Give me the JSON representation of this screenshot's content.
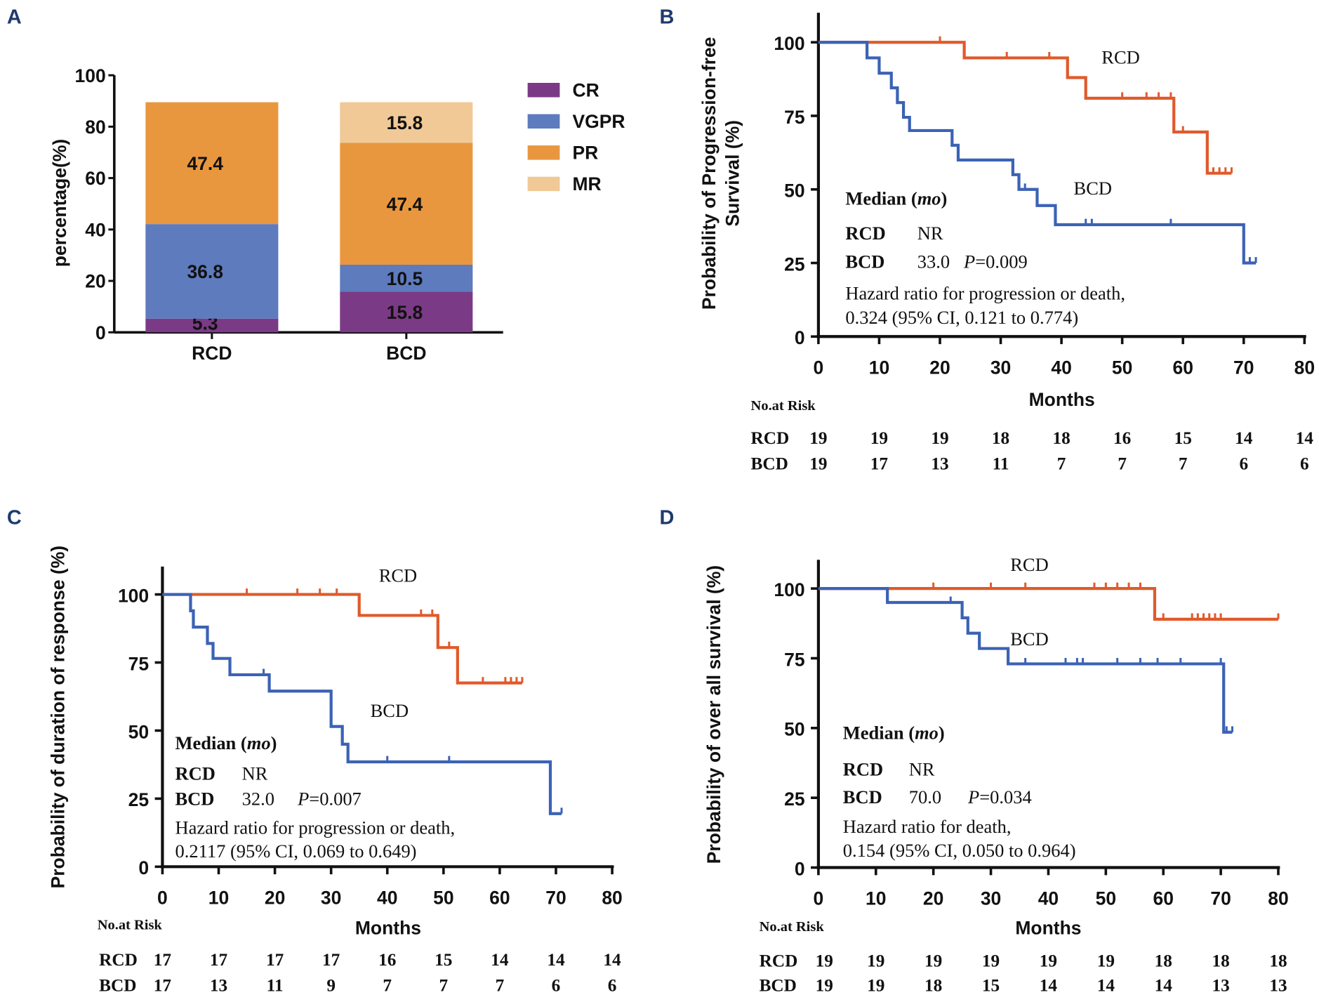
{
  "chart_data": [
    {
      "panel": "A",
      "type": "bar",
      "stacked": true,
      "categories": [
        "RCD",
        "BCD"
      ],
      "ylabel": "percentage(%)",
      "xlabel": "",
      "ylim": [
        0,
        100
      ],
      "yticks": [
        "0",
        "20",
        "40",
        "60",
        "80",
        "100"
      ],
      "legend_position": "right",
      "series": [
        {
          "name": "CR",
          "color": "#7b3a86",
          "values": [
            5.3,
            15.8
          ],
          "labels": [
            "5.3",
            "15.8"
          ]
        },
        {
          "name": "VGPR",
          "color": "#5e7bbd",
          "values": [
            36.8,
            10.5
          ],
          "labels": [
            "36.8",
            "10.5"
          ]
        },
        {
          "name": "PR",
          "color": "#e9973f",
          "values": [
            47.4,
            47.4
          ],
          "labels": [
            "47.4",
            "47.4"
          ]
        },
        {
          "name": "MR",
          "color": "#f0c996",
          "values": [
            0,
            15.8
          ],
          "labels": [
            "",
            "15.8"
          ]
        }
      ]
    },
    {
      "panel": "B",
      "type": "line",
      "subtype": "kaplan-meier",
      "ylabel": [
        "Probability of Progression-free",
        "Survival (%)"
      ],
      "xlabel": "Months",
      "xlim": [
        0,
        80
      ],
      "ylim": [
        0,
        100
      ],
      "xticks": [
        "0",
        "10",
        "20",
        "30",
        "40",
        "50",
        "60",
        "70",
        "80"
      ],
      "yticks": [
        "0",
        "25",
        "50",
        "75",
        "100"
      ],
      "series": [
        {
          "name": "RCD",
          "color": "#e05a2b",
          "end": 68,
          "steps": [
            [
              24,
              94.7
            ],
            [
              41,
              88.0
            ],
            [
              44,
              81.0
            ],
            [
              58.5,
              69.5
            ],
            [
              64,
              55.5
            ]
          ],
          "censored": [
            20,
            31,
            38,
            50,
            54,
            56,
            58,
            60,
            65,
            66,
            67,
            68
          ]
        },
        {
          "name": "BCD",
          "color": "#3b62b5",
          "end": 72,
          "steps": [
            [
              8,
              94.7
            ],
            [
              10,
              89.5
            ],
            [
              12,
              84.5
            ],
            [
              13,
              79.5
            ],
            [
              14,
              74.5
            ],
            [
              15,
              70
            ],
            [
              22,
              65
            ],
            [
              23,
              60
            ],
            [
              32,
              55
            ],
            [
              33,
              50
            ],
            [
              36,
              44.5
            ],
            [
              39,
              38
            ],
            [
              70,
              25
            ]
          ],
          "censored": [
            34,
            44,
            45,
            58,
            71,
            72
          ]
        }
      ],
      "annotation": {
        "median_label": "Median",
        "median_unit": "mo",
        "rows": [
          {
            "group": "RCD",
            "median": "NR",
            "p_label": "",
            "p_value": ""
          },
          {
            "group": "BCD",
            "median": "33.0",
            "p_label": "P",
            "p_value": "=0.009"
          }
        ],
        "hr_line1": "Hazard ratio for progression or death,",
        "hr_line2": "0.324 (95% CI, 0.121 to 0.774)"
      },
      "risk_table": {
        "title": "No.at Risk",
        "rows": [
          {
            "group": "RCD",
            "values": [
              "19",
              "19",
              "19",
              "18",
              "18",
              "16",
              "15",
              "14",
              "14"
            ]
          },
          {
            "group": "BCD",
            "values": [
              "19",
              "17",
              "13",
              "11",
              "7",
              "7",
              "7",
              "6",
              "6"
            ]
          }
        ]
      }
    },
    {
      "panel": "C",
      "type": "line",
      "subtype": "kaplan-meier",
      "ylabel": [
        "Probability of duration of response (%)"
      ],
      "xlabel": "Months",
      "xlim": [
        0,
        80
      ],
      "ylim": [
        0,
        100
      ],
      "xticks": [
        "0",
        "10",
        "20",
        "30",
        "40",
        "50",
        "60",
        "70",
        "80"
      ],
      "yticks": [
        "0",
        "25",
        "50",
        "75",
        "100"
      ],
      "series": [
        {
          "name": "RCD",
          "color": "#e05a2b",
          "end": 64,
          "steps": [
            [
              35,
              92.3
            ],
            [
              49,
              80.5
            ],
            [
              52.5,
              67.5
            ]
          ],
          "censored": [
            15,
            24,
            28,
            31,
            46,
            48,
            51,
            57,
            61,
            62,
            63,
            64
          ]
        },
        {
          "name": "BCD",
          "color": "#3b62b5",
          "end": 71,
          "steps": [
            [
              5,
              94
            ],
            [
              5.5,
              88
            ],
            [
              8,
              82
            ],
            [
              9,
              76.5
            ],
            [
              12,
              70.5
            ],
            [
              19,
              64.5
            ],
            [
              30,
              51.5
            ],
            [
              32,
              45
            ],
            [
              33,
              38.5
            ],
            [
              69,
              19.5
            ]
          ],
          "censored": [
            18,
            40,
            51,
            71
          ]
        }
      ],
      "annotation": {
        "median_label": "Median",
        "median_unit": "mo",
        "rows": [
          {
            "group": "RCD",
            "median": "NR",
            "p_label": "",
            "p_value": ""
          },
          {
            "group": "BCD",
            "median": "32.0",
            "p_label": "P",
            "p_value": "=0.007"
          }
        ],
        "hr_line1": "Hazard ratio for progression or death,",
        "hr_line2": "0.2117 (95% CI, 0.069 to 0.649)"
      },
      "risk_table": {
        "title": "No.at Risk",
        "rows": [
          {
            "group": "RCD",
            "values": [
              "17",
              "17",
              "17",
              "17",
              "16",
              "15",
              "14",
              "14",
              "14"
            ]
          },
          {
            "group": "BCD",
            "values": [
              "17",
              "13",
              "11",
              "9",
              "7",
              "7",
              "7",
              "6",
              "6"
            ]
          }
        ]
      }
    },
    {
      "panel": "D",
      "type": "line",
      "subtype": "kaplan-meier",
      "ylabel": [
        "Probability of over all survival (%)"
      ],
      "xlabel": "Months",
      "xlim": [
        0,
        80
      ],
      "ylim": [
        0,
        100
      ],
      "xticks": [
        "0",
        "10",
        "20",
        "30",
        "40",
        "50",
        "60",
        "70",
        "80"
      ],
      "yticks": [
        "0",
        "25",
        "50",
        "75",
        "100"
      ],
      "series": [
        {
          "name": "RCD",
          "color": "#e05a2b",
          "end": 80,
          "steps": [
            [
              58.5,
              89
            ]
          ],
          "censored": [
            20,
            30,
            36,
            48,
            50,
            52,
            54,
            56,
            60,
            65,
            66,
            67,
            68,
            69,
            70,
            80
          ]
        },
        {
          "name": "BCD",
          "color": "#3b62b5",
          "end": 72,
          "steps": [
            [
              12,
              95
            ],
            [
              25,
              89.5
            ],
            [
              26,
              84
            ],
            [
              28,
              78.5
            ],
            [
              33,
              73
            ],
            [
              70.5,
              48.5
            ]
          ],
          "censored": [
            23,
            36,
            43,
            45,
            46,
            52,
            56,
            59,
            63,
            70,
            71,
            72
          ]
        }
      ],
      "annotation": {
        "median_label": "Median",
        "median_unit": "mo",
        "rows": [
          {
            "group": "RCD",
            "median": "NR",
            "p_label": "",
            "p_value": ""
          },
          {
            "group": "BCD",
            "median": "70.0",
            "p_label": "P",
            "p_value": "=0.034"
          }
        ],
        "hr_line1": "Hazard ratio for  death,",
        "hr_line2": "0.154 (95% CI, 0.050 to 0.964)"
      },
      "risk_table": {
        "title": "No.at Risk",
        "rows": [
          {
            "group": "RCD",
            "values": [
              "19",
              "19",
              "19",
              "19",
              "19",
              "19",
              "18",
              "18",
              "18"
            ]
          },
          {
            "group": "BCD",
            "values": [
              "19",
              "19",
              "18",
              "15",
              "14",
              "14",
              "14",
              "13",
              "13"
            ]
          }
        ]
      }
    }
  ]
}
